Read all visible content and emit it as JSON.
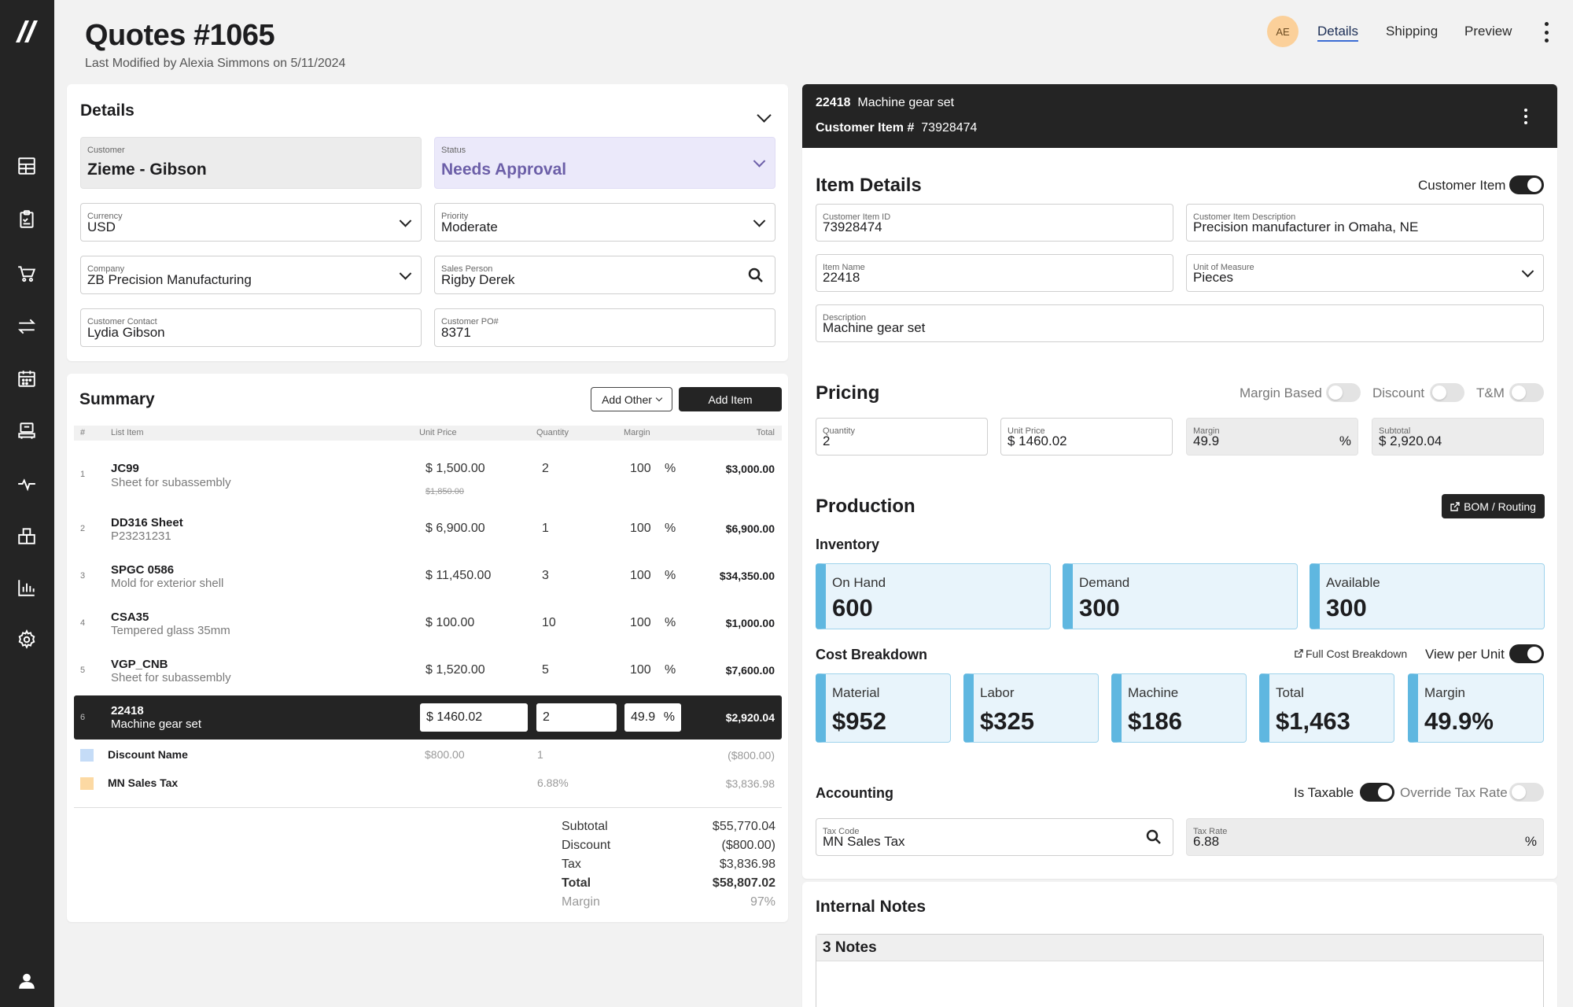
{
  "header": {
    "title": "Quotes #1065",
    "subtitle": "Last Modified by Alexia Simmons on 5/11/2024",
    "avatar_initials": "AE",
    "tabs": [
      "Details",
      "Shipping",
      "Preview"
    ],
    "active_tab": "Details"
  },
  "sidebar": {
    "icons": [
      "dashboard-icon",
      "clipboard-icon",
      "cart-icon",
      "transfer-icon",
      "calendar-icon",
      "machine-icon",
      "activity-icon",
      "inventory-icon",
      "chart-icon",
      "settings-icon",
      "user-icon"
    ]
  },
  "details": {
    "title": "Details",
    "customer": {
      "label": "Customer",
      "value": "Zieme - Gibson"
    },
    "status": {
      "label": "Status",
      "value": "Needs Approval"
    },
    "currency": {
      "label": "Currency",
      "value": "USD"
    },
    "priority": {
      "label": "Priority",
      "value": "Moderate"
    },
    "company": {
      "label": "Company",
      "value": "ZB Precision Manufacturing"
    },
    "sales_person": {
      "label": "Sales Person",
      "value": "Rigby Derek"
    },
    "customer_contact": {
      "label": "Customer Contact",
      "value": "Lydia Gibson"
    },
    "customer_po": {
      "label": "Customer PO#",
      "value": "8371"
    }
  },
  "summary": {
    "title": "Summary",
    "add_other": "Add Other",
    "add_item": "Add Item",
    "columns": {
      "num": "#",
      "item": "List Item",
      "unit_price": "Unit Price",
      "quantity": "Quantity",
      "margin": "Margin",
      "total": "Total"
    },
    "rows": [
      {
        "num": "1",
        "name": "JC99",
        "desc": "Sheet for subassembly",
        "price": "$ 1,500.00",
        "old_price": "$1,850.00",
        "qty": "2",
        "margin": "100",
        "pct": "%",
        "total": "$3,000.00"
      },
      {
        "num": "2",
        "name": "DD316 Sheet",
        "desc": "P23231231",
        "price": "$ 6,900.00",
        "qty": "1",
        "margin": "100",
        "pct": "%",
        "total": "$6,900.00"
      },
      {
        "num": "3",
        "name": "SPGC 0586",
        "desc": "Mold for exterior shell",
        "price": "$ 11,450.00",
        "qty": "3",
        "margin": "100",
        "pct": "%",
        "total": "$34,350.00"
      },
      {
        "num": "4",
        "name": "CSA35",
        "desc": "Tempered glass 35mm",
        "price": "$ 100.00",
        "qty": "10",
        "margin": "100",
        "pct": "%",
        "total": "$1,000.00"
      },
      {
        "num": "5",
        "name": "VGP_CNB",
        "desc": "Sheet for subassembly",
        "price": "$ 1,520.00",
        "qty": "5",
        "margin": "100",
        "pct": "%",
        "total": "$7,600.00"
      }
    ],
    "selected": {
      "num": "6",
      "name": "22418",
      "desc": "Machine gear set",
      "price": "$ 1460.02",
      "qty": "2",
      "margin": "49.9",
      "pct": "%",
      "total": "$2,920.04"
    },
    "discount": {
      "name": "Discount Name",
      "price": "$800.00",
      "qty": "1",
      "total": "($800.00)",
      "color": "#c5dcf7"
    },
    "tax": {
      "name": "MN Sales Tax",
      "rate": "6.88%",
      "total": "$3,836.98",
      "color": "#fcd9a3"
    },
    "totals": {
      "subtotal_label": "Subtotal",
      "subtotal": "$55,770.04",
      "discount_label": "Discount",
      "discount": "($800.00)",
      "tax_label": "Tax",
      "tax": "$3,836.98",
      "total_label": "Total",
      "total": "$58,807.02",
      "margin_label": "Margin",
      "margin": "97%"
    }
  },
  "item": {
    "header_id": "22418",
    "header_name": "Machine gear set",
    "header_customer_label": "Customer Item #",
    "header_customer_item": "73928474",
    "details_title": "Item Details",
    "customer_item_toggle": "Customer Item",
    "customer_item_id": {
      "label": "Customer Item ID",
      "value": "73928474"
    },
    "customer_item_desc": {
      "label": "Customer Item Description",
      "value": "Precision manufacturer in Omaha, NE"
    },
    "item_name": {
      "label": "Item Name",
      "value": "22418"
    },
    "uom": {
      "label": "Unit of Measure",
      "value": "Pieces"
    },
    "description": {
      "label": "Description",
      "value": "Machine gear set"
    }
  },
  "pricing": {
    "title": "Pricing",
    "toggles": {
      "margin_based": "Margin Based",
      "discount": "Discount",
      "tm": "T&M"
    },
    "quantity": {
      "label": "Quantity",
      "value": "2"
    },
    "unit_price": {
      "label": "Unit Price",
      "value": "$ 1460.02"
    },
    "margin": {
      "label": "Margin",
      "value": "49.9",
      "suffix": "%"
    },
    "subtotal": {
      "label": "Subtotal",
      "value": "$ 2,920.04"
    }
  },
  "production": {
    "title": "Production",
    "bom_button": "BOM / Routing",
    "inventory_title": "Inventory",
    "on_hand": {
      "label": "On Hand",
      "value": "600"
    },
    "demand": {
      "label": "Demand",
      "value": "300"
    },
    "available": {
      "label": "Available",
      "value": "300"
    },
    "cost_title": "Cost Breakdown",
    "full_cost_link": "Full Cost Breakdown",
    "view_per_unit": "View per Unit",
    "material": {
      "label": "Material",
      "value": "$952"
    },
    "labor": {
      "label": "Labor",
      "value": "$325"
    },
    "machine": {
      "label": "Machine",
      "value": "$186"
    },
    "total": {
      "label": "Total",
      "value": "$1,463"
    },
    "margin": {
      "label": "Margin",
      "value": "49.9%"
    }
  },
  "accounting": {
    "title": "Accounting",
    "is_taxable": "Is Taxable",
    "override_tax": "Override Tax Rate",
    "tax_code": {
      "label": "Tax Code",
      "value": "MN Sales Tax"
    },
    "tax_rate": {
      "label": "Tax Rate",
      "value": "6.88",
      "suffix": "%"
    }
  },
  "notes": {
    "title": "Internal Notes",
    "count": "3 Notes"
  },
  "colors": {
    "sidebar": "#242424",
    "accent_blue": "#5fb7e0",
    "status_purple": "#6c5fa8"
  }
}
